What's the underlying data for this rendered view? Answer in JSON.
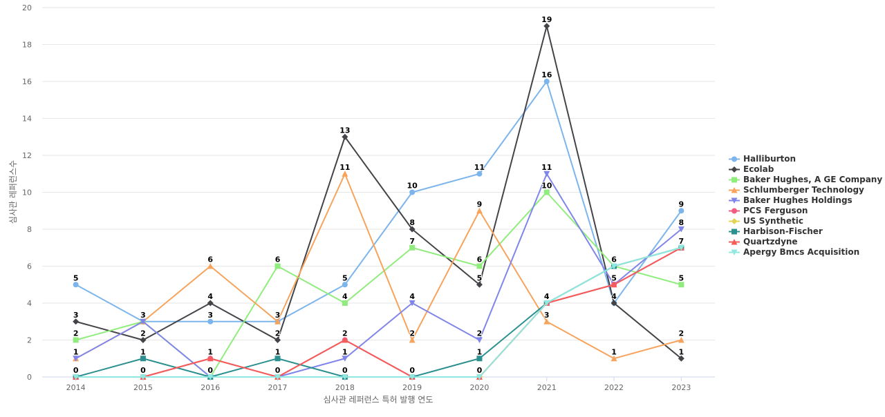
{
  "chart_data": {
    "type": "line",
    "title": "",
    "xlabel": "심사관 레퍼런스 특허 발행 연도",
    "ylabel": "심사관 레퍼런스수",
    "ylim": [
      0,
      20
    ],
    "yticks": [
      0,
      2,
      4,
      6,
      8,
      10,
      12,
      14,
      16,
      18,
      20
    ],
    "categories": [
      "2014",
      "2015",
      "2016",
      "2017",
      "2018",
      "2019",
      "2020",
      "2021",
      "2022",
      "2023"
    ],
    "grid": true,
    "legend_position": "right",
    "series": [
      {
        "name": "Halliburton",
        "color": "#7cb5ec",
        "marker": "circle",
        "values": [
          5,
          3,
          3,
          3,
          5,
          10,
          11,
          16,
          4,
          9
        ],
        "labeled": true
      },
      {
        "name": "Ecolab",
        "color": "#434348",
        "marker": "diamond",
        "values": [
          3,
          2,
          4,
          2,
          13,
          8,
          5,
          19,
          4,
          1
        ],
        "labeled": true
      },
      {
        "name": "Baker Hughes, A GE Company ...",
        "color": "#90ed7d",
        "marker": "square",
        "values": [
          2,
          3,
          0,
          6,
          4,
          7,
          6,
          10,
          6,
          5
        ],
        "labeled": true
      },
      {
        "name": "Schlumberger Technology",
        "color": "#f7a35c",
        "marker": "triangle",
        "values": [
          1,
          3,
          6,
          3,
          11,
          2,
          9,
          3,
          1,
          2
        ],
        "labeled": true
      },
      {
        "name": "Baker Hughes Holdings",
        "color": "#8085e9",
        "marker": "triangle-down",
        "values": [
          1,
          3,
          0,
          0,
          1,
          4,
          2,
          11,
          5,
          8
        ],
        "labeled": true
      },
      {
        "name": "PCS Ferguson",
        "color": "#f15c80",
        "marker": "circle",
        "values": [
          0,
          0,
          1,
          0,
          2,
          0,
          0,
          4,
          5,
          7
        ],
        "labeled": false
      },
      {
        "name": "US Synthetic",
        "color": "#e4d354",
        "marker": "diamond",
        "values": [
          0,
          0,
          0,
          0,
          0,
          0,
          0,
          4,
          6,
          7
        ],
        "labeled": false
      },
      {
        "name": "Harbison-Fischer",
        "color": "#2b908f",
        "marker": "square",
        "values": [
          0,
          1,
          0,
          1,
          0,
          0,
          1,
          4,
          6,
          7
        ],
        "labeled": true
      },
      {
        "name": "Quartzdyne",
        "color": "#f45b5b",
        "marker": "triangle",
        "values": [
          0,
          0,
          1,
          0,
          2,
          0,
          0,
          4,
          5,
          7
        ],
        "labeled": true
      },
      {
        "name": "Apergy Bmcs Acquisition",
        "color": "#91e8e1",
        "marker": "triangle-down",
        "values": [
          0,
          0,
          0,
          0,
          0,
          0,
          0,
          4,
          6,
          7
        ],
        "labeled": false
      }
    ]
  }
}
